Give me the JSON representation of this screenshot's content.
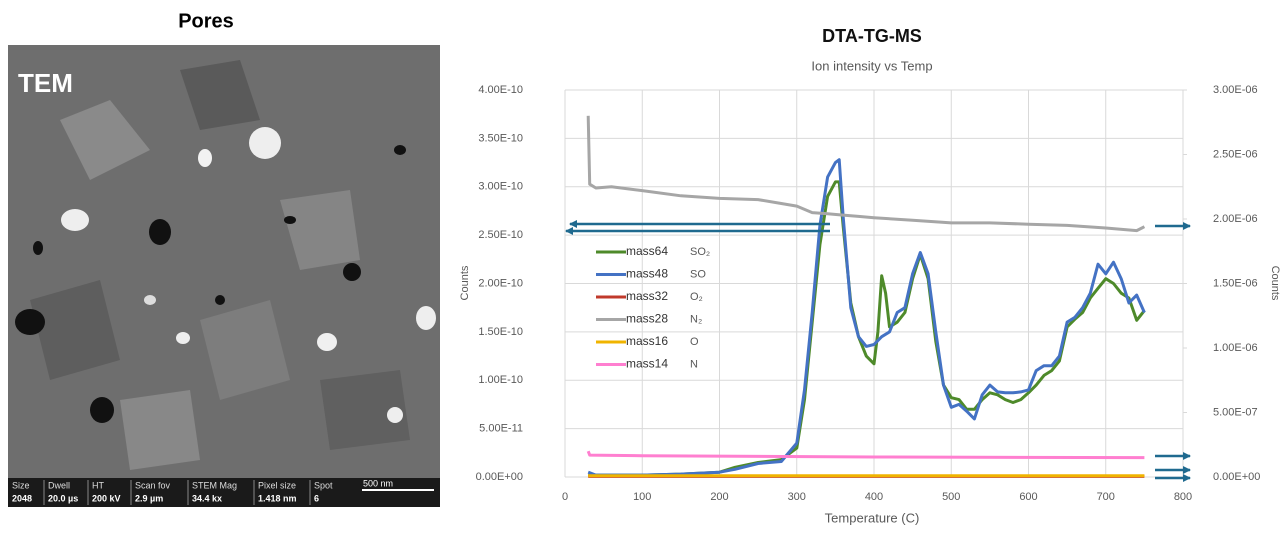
{
  "tem_panel": {
    "title": "Pores",
    "label": "TEM",
    "info": [
      {
        "key": "Size",
        "value": "2048"
      },
      {
        "key": "Dwell",
        "value": "20.0 µs"
      },
      {
        "key": "HT",
        "value": "200 kV"
      },
      {
        "key": "Scan fov",
        "value": "2.9 µm"
      },
      {
        "key": "STEM Mag",
        "value": "34.4 kx"
      },
      {
        "key": "Pixel size",
        "value": "1.418 nm"
      },
      {
        "key": "Spot",
        "value": "6"
      }
    ],
    "scale_bar": "500 nm"
  },
  "chart_data": {
    "type": "line",
    "title": "DTA-TG-MS",
    "subtitle": "Ion intensity vs Temp",
    "x_label": "Temperature (C)",
    "y_label": "Counts",
    "y2_label": "Counts",
    "xlim": [
      0,
      800
    ],
    "xticks": [
      0,
      100,
      200,
      300,
      400,
      500,
      600,
      700,
      800
    ],
    "ylim": [
      0,
      4e-10
    ],
    "yticks": [
      {
        "value": 0,
        "label": "0.00E+00"
      },
      {
        "value": 5e-11,
        "label": "5.00E-11"
      },
      {
        "value": 1e-10,
        "label": "1.00E-10"
      },
      {
        "value": 1.5e-10,
        "label": "1.50E-10"
      },
      {
        "value": 2e-10,
        "label": "2.00E-10"
      },
      {
        "value": 2.5e-10,
        "label": "2.50E-10"
      },
      {
        "value": 3e-10,
        "label": "3.00E-10"
      },
      {
        "value": 3.5e-10,
        "label": "3.50E-10"
      },
      {
        "value": 4e-10,
        "label": "4.00E-10"
      }
    ],
    "y2lim": [
      0,
      3e-06
    ],
    "y2ticks": [
      {
        "value": 0,
        "label": "0.00E+00"
      },
      {
        "value": 5e-07,
        "label": "5.00E-07"
      },
      {
        "value": 1e-06,
        "label": "1.00E-06"
      },
      {
        "value": 1.5e-06,
        "label": "1.50E-06"
      },
      {
        "value": 2e-06,
        "label": "2.00E-06"
      },
      {
        "value": 2.5e-06,
        "label": "2.50E-06"
      },
      {
        "value": 3e-06,
        "label": "3.00E-06"
      }
    ],
    "grid": true,
    "series": [
      {
        "name": "mass64",
        "label": "SO₂",
        "color": "#4e8a2a",
        "x": [
          30,
          100,
          150,
          200,
          220,
          250,
          280,
          300,
          310,
          320,
          330,
          340,
          350,
          355,
          360,
          370,
          380,
          390,
          400,
          405,
          410,
          415,
          420,
          430,
          440,
          450,
          460,
          470,
          480,
          490,
          500,
          510,
          520,
          530,
          540,
          550,
          560,
          570,
          580,
          590,
          600,
          610,
          620,
          630,
          640,
          650,
          660,
          670,
          680,
          690,
          700,
          710,
          720,
          730,
          740,
          750
        ],
        "values": [
          2e-12,
          2e-12,
          3e-12,
          5e-12,
          1e-11,
          1.5e-11,
          1.8e-11,
          3e-11,
          8e-11,
          1.6e-10,
          2.4e-10,
          2.9e-10,
          3.05e-10,
          3.05e-10,
          2.6e-10,
          1.8e-10,
          1.45e-10,
          1.25e-10,
          1.17e-10,
          1.5e-10,
          2.08e-10,
          1.9e-10,
          1.55e-10,
          1.6e-10,
          1.7e-10,
          2.05e-10,
          2.3e-10,
          2.05e-10,
          1.4e-10,
          9.5e-11,
          8.2e-11,
          8e-11,
          7e-11,
          7e-11,
          8e-11,
          8.7e-11,
          8.5e-11,
          8e-11,
          7.7e-11,
          8e-11,
          8.7e-11,
          9.5e-11,
          1.05e-10,
          1.1e-10,
          1.2e-10,
          1.55e-10,
          1.63e-10,
          1.7e-10,
          1.85e-10,
          1.95e-10,
          2.05e-10,
          2e-10,
          1.9e-10,
          1.85e-10,
          1.62e-10,
          1.72e-10
        ]
      },
      {
        "name": "mass48",
        "label": "SO",
        "color": "#4472c4",
        "x": [
          30,
          40,
          100,
          150,
          200,
          220,
          250,
          280,
          300,
          310,
          320,
          330,
          340,
          350,
          355,
          360,
          370,
          380,
          390,
          400,
          410,
          420,
          430,
          440,
          450,
          460,
          470,
          480,
          490,
          500,
          510,
          520,
          530,
          540,
          550,
          560,
          570,
          580,
          590,
          600,
          610,
          620,
          630,
          640,
          650,
          660,
          670,
          680,
          690,
          700,
          710,
          720,
          730,
          740,
          750
        ],
        "values": [
          5e-12,
          2e-12,
          2e-12,
          3e-12,
          5e-12,
          8e-12,
          1.4e-11,
          1.6e-11,
          3.5e-11,
          9e-11,
          1.7e-10,
          2.6e-10,
          3.1e-10,
          3.25e-10,
          3.28e-10,
          2.7e-10,
          1.75e-10,
          1.45e-10,
          1.35e-10,
          1.37e-10,
          1.45e-10,
          1.5e-10,
          1.7e-10,
          1.75e-10,
          2.1e-10,
          2.32e-10,
          2.1e-10,
          1.5e-10,
          9.5e-11,
          7.2e-11,
          7.5e-11,
          6.8e-11,
          6e-11,
          8.5e-11,
          9.5e-11,
          8.8e-11,
          8.7e-11,
          8.7e-11,
          8.8e-11,
          9e-11,
          1.1e-10,
          1.15e-10,
          1.15e-10,
          1.25e-10,
          1.6e-10,
          1.65e-10,
          1.75e-10,
          1.9e-10,
          2.2e-10,
          2.1e-10,
          2.22e-10,
          2.05e-10,
          1.8e-10,
          1.88e-10,
          1.7e-10
        ]
      },
      {
        "name": "mass32",
        "label": "O₂",
        "color": "#c0392b",
        "axis": "y2",
        "x": [
          30,
          750
        ],
        "values": [
          5e-09,
          5e-09
        ]
      },
      {
        "name": "mass28",
        "label": "N₂",
        "color": "#a6a6a6",
        "axis": "y2",
        "x": [
          30,
          32,
          40,
          60,
          100,
          150,
          200,
          250,
          280,
          300,
          320,
          340,
          360,
          380,
          400,
          450,
          500,
          550,
          600,
          650,
          700,
          740,
          750
        ],
        "values": [
          2.8e-06,
          2.27e-06,
          2.24e-06,
          2.25e-06,
          2.22e-06,
          2.18e-06,
          2.16e-06,
          2.15e-06,
          2.12e-06,
          2.1e-06,
          2.05e-06,
          2.04e-06,
          2.03e-06,
          2.02e-06,
          2.01e-06,
          1.99e-06,
          1.97e-06,
          1.97e-06,
          1.96e-06,
          1.95e-06,
          1.93e-06,
          1.91e-06,
          1.94e-06
        ]
      },
      {
        "name": "mass16",
        "label": "O",
        "color": "#f0b400",
        "axis": "y2",
        "x": [
          30,
          750
        ],
        "values": [
          1e-08,
          1e-08
        ]
      },
      {
        "name": "mass14",
        "label": "N",
        "color": "#ff7fd0",
        "axis": "y2",
        "x": [
          30,
          32,
          100,
          400,
          750
        ],
        "values": [
          2e-07,
          1.7e-07,
          1.65e-07,
          1.55e-07,
          1.5e-07
        ]
      }
    ]
  }
}
